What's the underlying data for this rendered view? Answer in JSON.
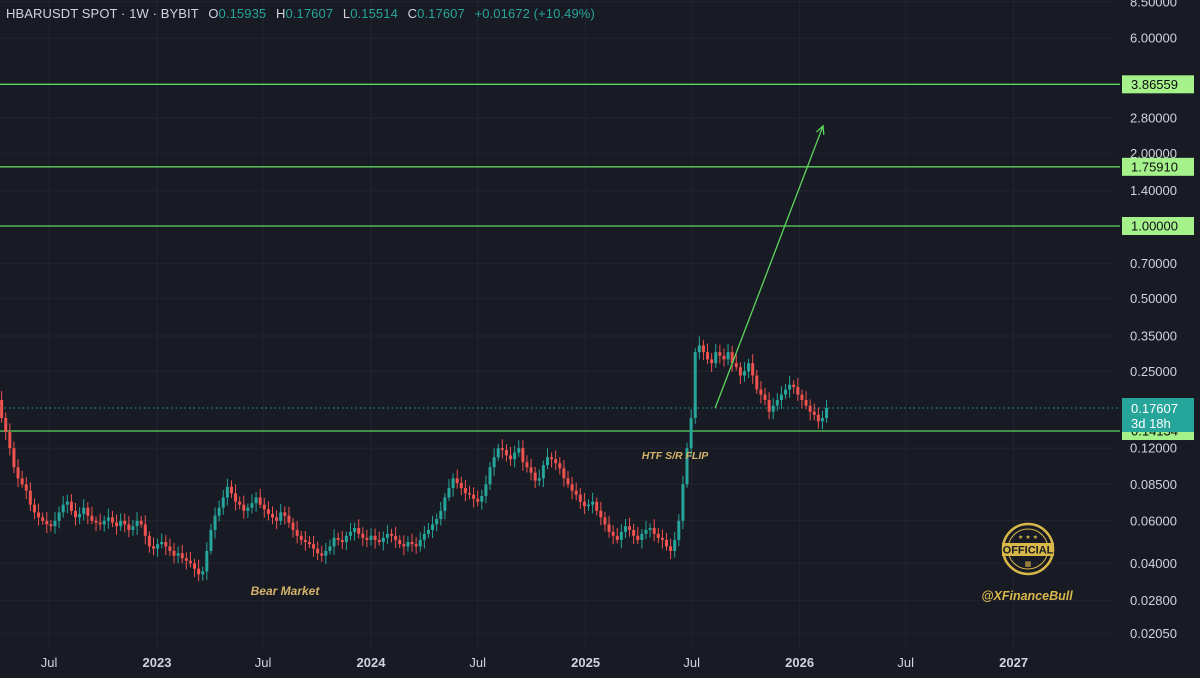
{
  "header": {
    "symbol": "HBARUSDT SPOT · 1W · BYBIT",
    "o_label": "O",
    "o_value": "0.15935",
    "h_label": "H",
    "h_value": "0.17607",
    "l_label": "L",
    "l_value": "0.15514",
    "c_label": "C",
    "c_value": "0.17607",
    "change": "+0.01672 (+10.49%)"
  },
  "colors": {
    "background": "#181a24",
    "up": "#26a69a",
    "down": "#ef5350",
    "level_line": "#5cd65c",
    "level_label_bg": "#a5f28a",
    "current_price_bg": "#26a69a",
    "annotation": "#d4b36a",
    "watermark": "#d9b84a"
  },
  "price_axis_labels": [
    "8.50000",
    "6.00000",
    "2.80000",
    "2.00000",
    "1.40000",
    "0.70000",
    "0.50000",
    "0.35000",
    "0.25000",
    "0.12000",
    "0.08500",
    "0.06000",
    "0.04000",
    "0.02800",
    "0.02050"
  ],
  "current_price": {
    "value": "0.17607",
    "countdown": "3d 18h"
  },
  "annotations": {
    "bear_market": "Bear Market",
    "flip": "HTF S/R FLIP"
  },
  "watermark": {
    "badge": "OFFICIAL",
    "handle": "@XFinanceBull"
  },
  "chart_data": {
    "type": "candlestick",
    "title": "HBARUSDT SPOT · 1W · BYBIT",
    "y_scale": "log",
    "ylim": [
      0.018,
      9.0
    ],
    "x_ticks": [
      "Jul",
      "2023",
      "Jul",
      "2024",
      "Jul",
      "2025",
      "Jul",
      "2026",
      "Jul",
      "2027"
    ],
    "x_tick_dates": [
      "2022-07-01",
      "2023-01-01",
      "2023-07-01",
      "2024-01-01",
      "2024-07-01",
      "2025-01-01",
      "2025-07-01",
      "2026-01-01",
      "2026-07-01",
      "2027-01-01"
    ],
    "horizontal_levels": [
      {
        "value": 3.86559,
        "label": "3.86559"
      },
      {
        "value": 1.7591,
        "label": "1.75910"
      },
      {
        "value": 1.0,
        "label": "1.00000"
      },
      {
        "value": 0.14134,
        "label": "0.14134"
      }
    ],
    "projection": {
      "from": {
        "date": "2025-08-10",
        "price": 0.176
      },
      "to": {
        "date": "2026-02-10",
        "price": 2.6
      }
    },
    "closes_weekly_from_2022_04_04": [
      0.19,
      0.16,
      0.14,
      0.12,
      0.1,
      0.09,
      0.085,
      0.08,
      0.07,
      0.065,
      0.062,
      0.06,
      0.058,
      0.057,
      0.06,
      0.065,
      0.07,
      0.072,
      0.066,
      0.062,
      0.064,
      0.068,
      0.063,
      0.06,
      0.059,
      0.058,
      0.06,
      0.062,
      0.059,
      0.057,
      0.06,
      0.058,
      0.055,
      0.057,
      0.06,
      0.058,
      0.052,
      0.047,
      0.046,
      0.048,
      0.049,
      0.047,
      0.045,
      0.043,
      0.044,
      0.042,
      0.041,
      0.04,
      0.038,
      0.036,
      0.037,
      0.045,
      0.055,
      0.063,
      0.068,
      0.075,
      0.083,
      0.078,
      0.072,
      0.07,
      0.066,
      0.068,
      0.071,
      0.075,
      0.07,
      0.067,
      0.064,
      0.062,
      0.06,
      0.065,
      0.063,
      0.059,
      0.055,
      0.052,
      0.05,
      0.049,
      0.048,
      0.046,
      0.044,
      0.043,
      0.045,
      0.047,
      0.051,
      0.05,
      0.049,
      0.052,
      0.054,
      0.056,
      0.053,
      0.051,
      0.05,
      0.052,
      0.05,
      0.049,
      0.051,
      0.053,
      0.052,
      0.05,
      0.048,
      0.047,
      0.049,
      0.048,
      0.047,
      0.05,
      0.053,
      0.055,
      0.058,
      0.061,
      0.066,
      0.075,
      0.082,
      0.09,
      0.086,
      0.082,
      0.078,
      0.077,
      0.074,
      0.072,
      0.076,
      0.085,
      0.1,
      0.11,
      0.12,
      0.118,
      0.112,
      0.108,
      0.115,
      0.12,
      0.105,
      0.1,
      0.095,
      0.088,
      0.09,
      0.102,
      0.11,
      0.108,
      0.104,
      0.099,
      0.09,
      0.085,
      0.08,
      0.077,
      0.072,
      0.069,
      0.07,
      0.072,
      0.066,
      0.062,
      0.058,
      0.054,
      0.052,
      0.05,
      0.054,
      0.057,
      0.055,
      0.052,
      0.05,
      0.053,
      0.055,
      0.056,
      0.053,
      0.051,
      0.05,
      0.047,
      0.045,
      0.05,
      0.06,
      0.085,
      0.12,
      0.16,
      0.3,
      0.32,
      0.3,
      0.28,
      0.27,
      0.3,
      0.29,
      0.28,
      0.3,
      0.27,
      0.26,
      0.24,
      0.25,
      0.27,
      0.24,
      0.21,
      0.2,
      0.19,
      0.17,
      0.18,
      0.19,
      0.2,
      0.21,
      0.22,
      0.215,
      0.2,
      0.19,
      0.18,
      0.17,
      0.165,
      0.155,
      0.16,
      0.176
    ]
  }
}
